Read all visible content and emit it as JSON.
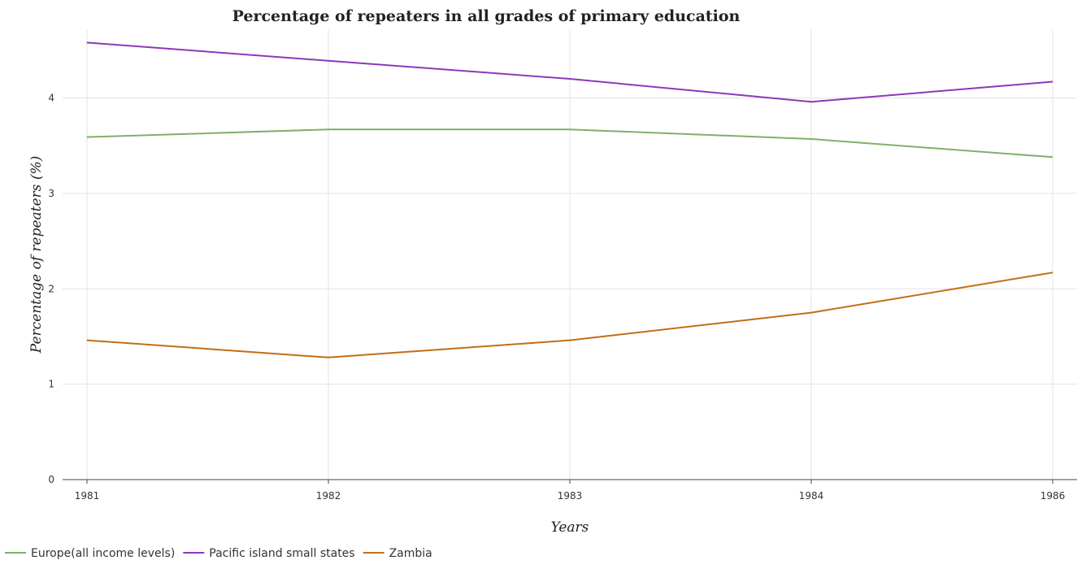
{
  "chart_data": {
    "type": "line",
    "title": "Percentage of repeaters in all grades of primary education",
    "xlabel": "Years",
    "ylabel": "Percentage of repeaters (%)",
    "categories": [
      "1981",
      "1982",
      "1983",
      "1984",
      "1986"
    ],
    "ylim": [
      0,
      4.72
    ],
    "yticks": [
      "0",
      "1",
      "2",
      "3",
      "4"
    ],
    "grid": true,
    "legend_position": "bottom-left",
    "series": [
      {
        "name": "Europe(all income levels)",
        "color": "#7fb06a",
        "values": [
          3.59,
          3.67,
          3.67,
          3.57,
          3.38
        ]
      },
      {
        "name": "Pacific island small states",
        "color": "#8a39b8",
        "values": [
          4.58,
          4.39,
          4.2,
          3.96,
          4.17
        ]
      },
      {
        "name": "Zambia",
        "color": "#c26f14",
        "values": [
          1.46,
          1.28,
          1.46,
          1.75,
          2.17
        ]
      }
    ]
  }
}
